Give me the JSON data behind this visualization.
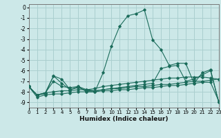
{
  "xlabel": "Humidex (Indice chaleur)",
  "bg_color": "#cce8e8",
  "grid_color": "#aacfcf",
  "line_color": "#1a6b5a",
  "lines": [
    {
      "x": [
        0,
        1,
        2,
        3,
        4,
        5,
        6,
        7,
        8,
        9,
        10,
        11,
        12,
        13,
        14,
        15,
        16,
        17,
        18,
        19,
        20,
        21,
        22,
        23
      ],
      "y": [
        -7.5,
        -8.3,
        -8.1,
        -6.5,
        -6.8,
        -7.8,
        -7.5,
        -8.0,
        -8.0,
        -6.2,
        -3.7,
        -1.8,
        -0.8,
        -0.6,
        -0.25,
        -3.1,
        -4.0,
        -5.5,
        -5.3,
        -5.3,
        -7.2,
        -6.2,
        -5.9,
        -9.0
      ]
    },
    {
      "x": [
        0,
        1,
        2,
        3,
        4,
        5,
        6,
        7,
        8,
        9,
        10,
        11,
        12,
        13,
        14,
        15,
        16,
        17,
        18,
        19,
        20,
        21,
        22,
        23
      ],
      "y": [
        -7.5,
        -8.3,
        -8.1,
        -7.0,
        -7.5,
        -7.6,
        -7.5,
        -7.8,
        -7.7,
        -7.5,
        -7.4,
        -7.3,
        -7.2,
        -7.1,
        -7.0,
        -6.9,
        -6.8,
        -6.7,
        -6.7,
        -6.6,
        -6.6,
        -6.6,
        -6.7,
        -6.8
      ]
    },
    {
      "x": [
        0,
        1,
        2,
        3,
        4,
        5,
        6,
        7,
        8,
        9,
        10,
        11,
        12,
        13,
        14,
        15,
        16,
        17,
        18,
        19,
        20,
        21,
        22,
        23
      ],
      "y": [
        -7.5,
        -8.3,
        -8.1,
        -8.0,
        -7.9,
        -7.9,
        -7.8,
        -7.8,
        -7.9,
        -7.8,
        -7.7,
        -7.7,
        -7.6,
        -7.5,
        -7.5,
        -7.4,
        -7.3,
        -7.3,
        -7.2,
        -7.1,
        -7.0,
        -7.0,
        -6.9,
        -6.8
      ]
    },
    {
      "x": [
        0,
        1,
        2,
        3,
        4,
        5,
        6,
        7,
        8,
        9,
        10,
        11,
        12,
        13,
        14,
        15,
        16,
        17,
        18,
        19,
        20,
        21,
        22,
        23
      ],
      "y": [
        -7.5,
        -8.3,
        -8.2,
        -6.5,
        -7.2,
        -7.8,
        -7.6,
        -7.9,
        -7.9,
        -7.8,
        -7.7,
        -7.6,
        -7.5,
        -7.4,
        -7.3,
        -7.2,
        -5.8,
        -5.6,
        -5.5,
        -7.0,
        -6.8,
        -6.4,
        -6.0,
        -9.0
      ]
    },
    {
      "x": [
        0,
        1,
        2,
        3,
        4,
        5,
        6,
        7,
        8,
        9,
        10,
        11,
        12,
        13,
        14,
        15,
        16,
        17,
        18,
        19,
        20,
        21,
        22,
        23
      ],
      "y": [
        -7.5,
        -8.5,
        -8.3,
        -8.2,
        -8.2,
        -8.1,
        -8.0,
        -8.0,
        -8.0,
        -7.9,
        -7.9,
        -7.8,
        -7.8,
        -7.7,
        -7.6,
        -7.6,
        -7.5,
        -7.4,
        -7.4,
        -7.3,
        -7.2,
        -7.1,
        -7.1,
        -8.9
      ]
    }
  ],
  "xlim": [
    0,
    23
  ],
  "ylim": [
    -9.5,
    0.3
  ],
  "yticks": [
    0,
    -1,
    -2,
    -3,
    -4,
    -5,
    -6,
    -7,
    -8,
    -9
  ],
  "xticks": [
    0,
    1,
    2,
    3,
    4,
    5,
    6,
    7,
    8,
    9,
    10,
    11,
    12,
    13,
    14,
    15,
    16,
    17,
    18,
    19,
    20,
    21,
    22,
    23
  ]
}
